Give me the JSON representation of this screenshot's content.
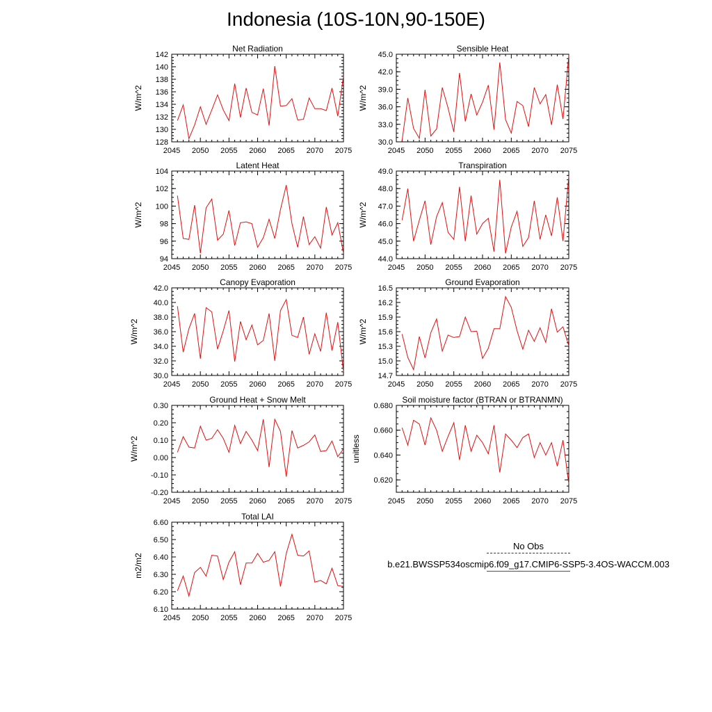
{
  "figure_title": "Indonesia (10S-10N,90-150E)",
  "legend": {
    "items": [
      {
        "label": "No Obs",
        "style": "dashed",
        "color": "#2a2a8c"
      },
      {
        "label": "b.e21.BWSSP534oscmip6.f09_g17.CMIP6-SSP5-3.4OS-WACCM.003",
        "style": "solid",
        "color": "#e01010"
      }
    ]
  },
  "chart_data": [
    {
      "type": "line",
      "title": "Net Radiation",
      "ylabel": "W/m^2",
      "xlim": [
        2045,
        2075
      ],
      "ylim": [
        128,
        142
      ],
      "xticks": [
        "2045",
        "2050",
        "2055",
        "2060",
        "2065",
        "2070",
        "2075"
      ],
      "yticks": [
        "128",
        "130",
        "132",
        "134",
        "136",
        "138",
        "140",
        "142"
      ],
      "x": [
        2046,
        2047,
        2048,
        2049,
        2050,
        2051,
        2052,
        2053,
        2054,
        2055,
        2056,
        2057,
        2058,
        2059,
        2060,
        2061,
        2062,
        2063,
        2064,
        2065,
        2066,
        2067,
        2068,
        2069,
        2070,
        2071,
        2072,
        2073,
        2074,
        2075
      ],
      "series": [
        {
          "name": "b.e21.BWSSP534oscmip6.f09_g17.CMIP6-SSP5-3.4OS-WACCM.003",
          "color": "#e01010",
          "values": [
            131.4,
            133.9,
            128.5,
            130.7,
            133.6,
            130.8,
            133.1,
            135.5,
            133.1,
            131.4,
            137.3,
            131.9,
            136.6,
            132.7,
            132.3,
            136.5,
            130.6,
            140.1,
            133.7,
            133.8,
            134.9,
            131.5,
            131.6,
            135.0,
            133.3,
            133.3,
            133.0,
            136.6,
            132.1,
            138.5
          ]
        }
      ]
    },
    {
      "type": "line",
      "title": "Sensible Heat",
      "ylabel": "W/m^2",
      "xlim": [
        2045,
        2075
      ],
      "ylim": [
        30.0,
        45.0
      ],
      "xticks": [
        "2045",
        "2050",
        "2055",
        "2060",
        "2065",
        "2070",
        "2075"
      ],
      "yticks": [
        "30.0",
        "33.0",
        "36.0",
        "39.0",
        "42.0",
        "45.0"
      ],
      "x": [
        2046,
        2047,
        2048,
        2049,
        2050,
        2051,
        2052,
        2053,
        2054,
        2055,
        2056,
        2057,
        2058,
        2059,
        2060,
        2061,
        2062,
        2063,
        2064,
        2065,
        2066,
        2067,
        2068,
        2069,
        2070,
        2071,
        2072,
        2073,
        2074,
        2075
      ],
      "series": [
        {
          "name": "b.e21.BWSSP534oscmip6.f09_g17.CMIP6-SSP5-3.4OS-WACCM.003",
          "color": "#e01010",
          "values": [
            30.2,
            37.5,
            32.3,
            30.6,
            38.9,
            31.0,
            32.2,
            39.3,
            35.8,
            31.7,
            41.8,
            33.5,
            38.2,
            34.6,
            36.8,
            39.7,
            32.1,
            43.6,
            33.8,
            31.5,
            36.9,
            36.2,
            32.6,
            39.3,
            36.5,
            38.1,
            32.9,
            39.8,
            33.9,
            44.8
          ]
        }
      ]
    },
    {
      "type": "line",
      "title": "Latent Heat",
      "ylabel": "W/m^2",
      "xlim": [
        2045,
        2075
      ],
      "ylim": [
        94,
        104
      ],
      "xticks": [
        "2045",
        "2050",
        "2055",
        "2060",
        "2065",
        "2070",
        "2075"
      ],
      "yticks": [
        "94",
        "96",
        "98",
        "100",
        "102",
        "104"
      ],
      "x": [
        2046,
        2047,
        2048,
        2049,
        2050,
        2051,
        2052,
        2053,
        2054,
        2055,
        2056,
        2057,
        2058,
        2059,
        2060,
        2061,
        2062,
        2063,
        2064,
        2065,
        2066,
        2067,
        2068,
        2069,
        2070,
        2071,
        2072,
        2073,
        2074,
        2075
      ],
      "series": [
        {
          "name": "b.e21.BWSSP534oscmip6.f09_g17.CMIP6-SSP5-3.4OS-WACCM.003",
          "color": "#e01010",
          "values": [
            101.2,
            96.3,
            96.2,
            100.1,
            94.6,
            99.8,
            100.8,
            96.1,
            96.8,
            99.5,
            95.5,
            98.1,
            98.2,
            98.0,
            95.3,
            96.4,
            98.5,
            96.3,
            99.6,
            102.4,
            98.0,
            95.3,
            98.8,
            95.6,
            96.5,
            95.2,
            99.9,
            96.7,
            98.1,
            94.6
          ]
        }
      ]
    },
    {
      "type": "line",
      "title": "Transpiration",
      "ylabel": "W/m^2",
      "xlim": [
        2045,
        2075
      ],
      "ylim": [
        44.0,
        49.0
      ],
      "xticks": [
        "2045",
        "2050",
        "2055",
        "2060",
        "2065",
        "2070",
        "2075"
      ],
      "yticks": [
        "44.0",
        "45.0",
        "46.0",
        "47.0",
        "48.0",
        "49.0"
      ],
      "x": [
        2046,
        2047,
        2048,
        2049,
        2050,
        2051,
        2052,
        2053,
        2054,
        2055,
        2056,
        2057,
        2058,
        2059,
        2060,
        2061,
        2062,
        2063,
        2064,
        2065,
        2066,
        2067,
        2068,
        2069,
        2070,
        2071,
        2072,
        2073,
        2074,
        2075
      ],
      "series": [
        {
          "name": "b.e21.BWSSP534oscmip6.f09_g17.CMIP6-SSP5-3.4OS-WACCM.003",
          "color": "#e01010",
          "values": [
            46.2,
            48.0,
            45.0,
            46.2,
            47.3,
            44.8,
            46.4,
            47.2,
            45.5,
            45.1,
            48.1,
            45.0,
            47.6,
            45.4,
            46.0,
            46.3,
            44.4,
            48.5,
            44.3,
            45.8,
            46.7,
            44.7,
            45.2,
            47.3,
            45.1,
            46.5,
            45.3,
            47.5,
            45.0,
            48.7
          ]
        }
      ]
    },
    {
      "type": "line",
      "title": "Canopy Evaporation",
      "ylabel": "W/m^2",
      "xlim": [
        2045,
        2075
      ],
      "ylim": [
        30.0,
        42.0
      ],
      "xticks": [
        "2045",
        "2050",
        "2055",
        "2060",
        "2065",
        "2070",
        "2075"
      ],
      "yticks": [
        "30.0",
        "32.0",
        "34.0",
        "36.0",
        "38.0",
        "40.0",
        "42.0"
      ],
      "x": [
        2046,
        2047,
        2048,
        2049,
        2050,
        2051,
        2052,
        2053,
        2054,
        2055,
        2056,
        2057,
        2058,
        2059,
        2060,
        2061,
        2062,
        2063,
        2064,
        2065,
        2066,
        2067,
        2068,
        2069,
        2070,
        2071,
        2072,
        2073,
        2074,
        2075
      ],
      "series": [
        {
          "name": "b.e21.BWSSP534oscmip6.f09_g17.CMIP6-SSP5-3.4OS-WACCM.003",
          "color": "#e01010",
          "values": [
            39.5,
            33.2,
            36.4,
            38.5,
            32.3,
            39.3,
            38.7,
            33.6,
            36.1,
            38.9,
            31.9,
            37.4,
            34.9,
            36.9,
            34.2,
            34.8,
            38.5,
            32.0,
            38.9,
            40.4,
            35.5,
            35.2,
            38.0,
            32.9,
            35.7,
            33.3,
            38.6,
            33.4,
            37.3,
            30.5
          ]
        }
      ]
    },
    {
      "type": "line",
      "title": "Ground Evaporation",
      "ylabel": "W/m^2",
      "xlim": [
        2045,
        2075
      ],
      "ylim": [
        14.7,
        16.5
      ],
      "xticks": [
        "2045",
        "2050",
        "2055",
        "2060",
        "2065",
        "2070",
        "2075"
      ],
      "yticks": [
        "14.7",
        "15.0",
        "15.3",
        "15.6",
        "15.9",
        "16.2",
        "16.5"
      ],
      "x": [
        2046,
        2047,
        2048,
        2049,
        2050,
        2051,
        2052,
        2053,
        2054,
        2055,
        2056,
        2057,
        2058,
        2059,
        2060,
        2061,
        2062,
        2063,
        2064,
        2065,
        2066,
        2067,
        2068,
        2069,
        2070,
        2071,
        2072,
        2073,
        2074,
        2075
      ],
      "series": [
        {
          "name": "b.e21.BWSSP534oscmip6.f09_g17.CMIP6-SSP5-3.4OS-WACCM.003",
          "color": "#e01010",
          "values": [
            15.55,
            15.07,
            14.82,
            15.5,
            15.06,
            15.58,
            15.86,
            15.2,
            15.53,
            15.48,
            15.5,
            15.9,
            15.6,
            15.61,
            15.05,
            15.26,
            15.66,
            15.66,
            16.32,
            16.1,
            15.62,
            15.24,
            15.63,
            15.4,
            15.68,
            15.38,
            16.07,
            15.59,
            15.7,
            15.31
          ]
        }
      ]
    },
    {
      "type": "line",
      "title": "Ground Heat + Snow Melt",
      "ylabel": "W/m^2",
      "xlim": [
        2045,
        2075
      ],
      "ylim": [
        -0.2,
        0.3
      ],
      "xticks": [
        "2045",
        "2050",
        "2055",
        "2060",
        "2065",
        "2070",
        "2075"
      ],
      "yticks": [
        "-0.20",
        "-0.10",
        "0.00",
        "0.10",
        "0.20",
        "0.30"
      ],
      "x": [
        2046,
        2047,
        2048,
        2049,
        2050,
        2051,
        2052,
        2053,
        2054,
        2055,
        2056,
        2057,
        2058,
        2059,
        2060,
        2061,
        2062,
        2063,
        2064,
        2065,
        2066,
        2067,
        2068,
        2069,
        2070,
        2071,
        2072,
        2073,
        2074,
        2075
      ],
      "series": [
        {
          "name": "b.e21.BWSSP534oscmip6.f09_g17.CMIP6-SSP5-3.4OS-WACCM.003",
          "color": "#e01010",
          "values": [
            0.03,
            0.12,
            0.06,
            0.055,
            0.18,
            0.1,
            0.11,
            0.16,
            0.11,
            0.03,
            0.185,
            0.08,
            0.15,
            0.1,
            0.04,
            0.22,
            -0.055,
            0.22,
            0.15,
            -0.11,
            0.155,
            0.055,
            0.07,
            0.09,
            0.13,
            0.035,
            0.04,
            0.095,
            0.005,
            0.05
          ]
        }
      ]
    },
    {
      "type": "line",
      "title": "Soil moisture factor (BTRAN or BTRANMN)",
      "ylabel": "unitless",
      "xlim": [
        2045,
        2075
      ],
      "ylim": [
        0.61,
        0.68
      ],
      "xticks": [
        "2045",
        "2050",
        "2055",
        "2060",
        "2065",
        "2070",
        "2075"
      ],
      "yticks": [
        "0.620",
        "0.640",
        "0.660",
        "0.680"
      ],
      "x": [
        2046,
        2047,
        2048,
        2049,
        2050,
        2051,
        2052,
        2053,
        2054,
        2055,
        2056,
        2057,
        2058,
        2059,
        2060,
        2061,
        2062,
        2063,
        2064,
        2065,
        2066,
        2067,
        2068,
        2069,
        2070,
        2071,
        2072,
        2073,
        2074,
        2075
      ],
      "series": [
        {
          "name": "b.e21.BWSSP534oscmip6.f09_g17.CMIP6-SSP5-3.4OS-WACCM.003",
          "color": "#e01010",
          "values": [
            0.662,
            0.648,
            0.668,
            0.665,
            0.648,
            0.67,
            0.66,
            0.643,
            0.655,
            0.666,
            0.636,
            0.664,
            0.643,
            0.656,
            0.65,
            0.641,
            0.664,
            0.626,
            0.657,
            0.652,
            0.646,
            0.654,
            0.657,
            0.638,
            0.65,
            0.64,
            0.65,
            0.631,
            0.652,
            0.617
          ]
        }
      ]
    },
    {
      "type": "line",
      "title": "Total LAI",
      "ylabel": "m2/m2",
      "xlim": [
        2045,
        2075
      ],
      "ylim": [
        6.1,
        6.6
      ],
      "xticks": [
        "2045",
        "2050",
        "2055",
        "2060",
        "2065",
        "2070",
        "2075"
      ],
      "yticks": [
        "6.10",
        "6.20",
        "6.30",
        "6.40",
        "6.50",
        "6.60"
      ],
      "x": [
        2046,
        2047,
        2048,
        2049,
        2050,
        2051,
        2052,
        2053,
        2054,
        2055,
        2056,
        2057,
        2058,
        2059,
        2060,
        2061,
        2062,
        2063,
        2064,
        2065,
        2066,
        2067,
        2068,
        2069,
        2070,
        2071,
        2072,
        2073,
        2074,
        2075
      ],
      "series": [
        {
          "name": "b.e21.BWSSP534oscmip6.f09_g17.CMIP6-SSP5-3.4OS-WACCM.003",
          "color": "#e01010",
          "values": [
            6.205,
            6.29,
            6.175,
            6.31,
            6.34,
            6.29,
            6.41,
            6.405,
            6.27,
            6.37,
            6.43,
            6.24,
            6.365,
            6.365,
            6.42,
            6.37,
            6.38,
            6.43,
            6.23,
            6.42,
            6.53,
            6.41,
            6.405,
            6.435,
            6.255,
            6.265,
            6.245,
            6.335,
            6.235,
            6.23
          ]
        }
      ]
    }
  ]
}
